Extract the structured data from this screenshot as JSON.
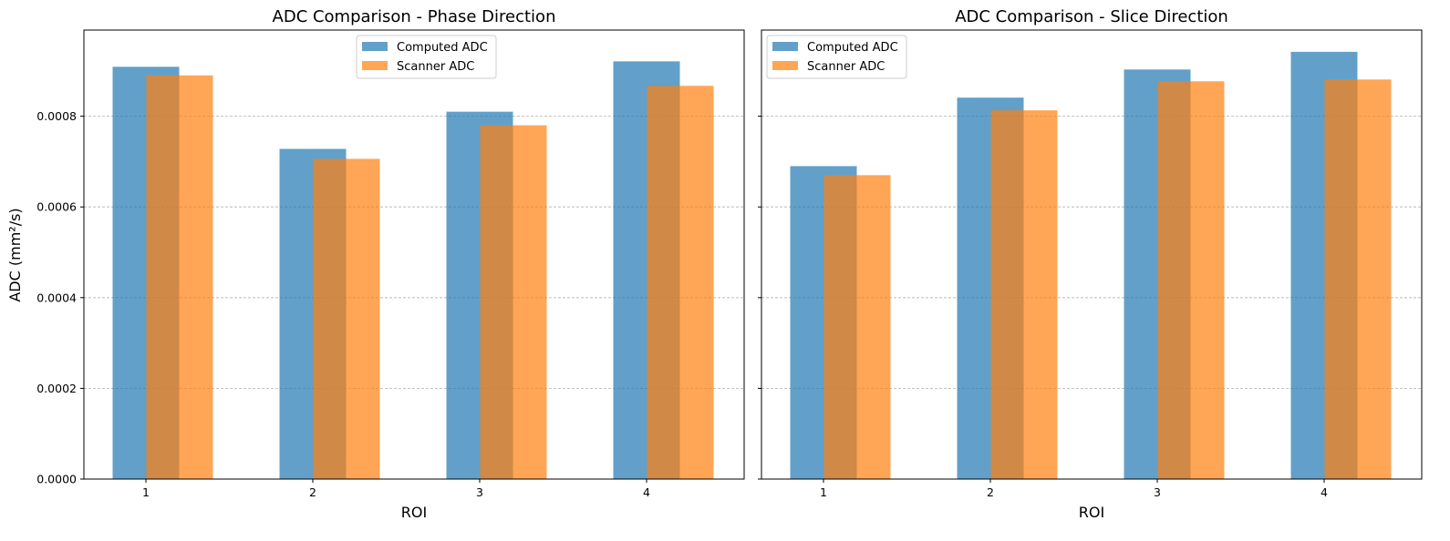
{
  "figure": {
    "ylabel": "ADC (mm²/s)"
  },
  "chart_data": [
    {
      "type": "bar",
      "title": "ADC Comparison - Phase Direction",
      "xlabel": "ROI",
      "ylabel": "ADC (mm²/s)",
      "categories": [
        "1",
        "2",
        "3",
        "4"
      ],
      "ylim": [
        0,
        0.00099
      ],
      "yticks": [
        "0.0000",
        "0.0002",
        "0.0004",
        "0.0006",
        "0.0008"
      ],
      "grid": "y-dashed",
      "legend_position": "top-center",
      "series": [
        {
          "name": "Computed ADC",
          "color": "#1f77b4",
          "values": [
            0.000909,
            0.000728,
            0.00081,
            0.000921
          ]
        },
        {
          "name": "Scanner ADC",
          "color": "#ff7f0e",
          "values": [
            0.00089,
            0.000706,
            0.00078,
            0.000867
          ]
        }
      ]
    },
    {
      "type": "bar",
      "title": "ADC Comparison - Slice Direction",
      "xlabel": "ROI",
      "ylabel": "",
      "categories": [
        "1",
        "2",
        "3",
        "4"
      ],
      "ylim": [
        0,
        0.00099
      ],
      "yticks": [
        "",
        "",
        "",
        "",
        ""
      ],
      "grid": "y-dashed",
      "legend_position": "top-left",
      "series": [
        {
          "name": "Computed ADC",
          "color": "#1f77b4",
          "values": [
            0.00069,
            0.000841,
            0.000903,
            0.000942
          ]
        },
        {
          "name": "Scanner ADC",
          "color": "#ff7f0e",
          "values": [
            0.00067,
            0.000813,
            0.000877,
            0.000881
          ]
        }
      ]
    }
  ]
}
